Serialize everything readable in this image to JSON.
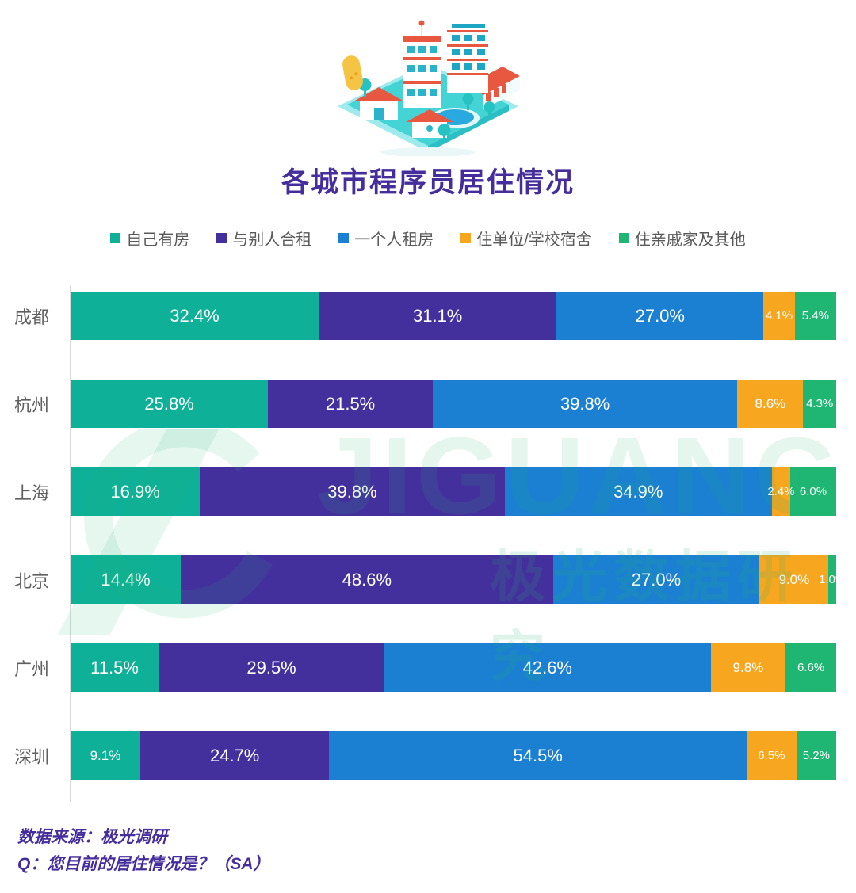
{
  "title": "各城市程序员居住情况",
  "legend": [
    {
      "label": "自己有房",
      "color": "#0FB098"
    },
    {
      "label": "与别人合租",
      "color": "#44309D"
    },
    {
      "label": "一个人租房",
      "color": "#1B80D1"
    },
    {
      "label": "住单位/学校宿舍",
      "color": "#F6A61F"
    },
    {
      "label": "住亲戚家及其他",
      "color": "#1FB573"
    }
  ],
  "chart_data": {
    "type": "bar",
    "orientation": "horizontal_stacked",
    "title": "各城市程序员居住情况",
    "categories": [
      "成都",
      "杭州",
      "上海",
      "北京",
      "广州",
      "深圳"
    ],
    "series": [
      {
        "name": "自己有房",
        "color": "#0FB098",
        "values": [
          32.4,
          25.8,
          16.9,
          14.4,
          11.5,
          9.1
        ]
      },
      {
        "name": "与别人合租",
        "color": "#44309D",
        "values": [
          31.1,
          21.5,
          39.8,
          48.6,
          29.5,
          24.7
        ]
      },
      {
        "name": "一个人租房",
        "color": "#1B80D1",
        "values": [
          27.0,
          39.8,
          34.9,
          27.0,
          42.6,
          54.5
        ]
      },
      {
        "name": "住单位/学校宿舍",
        "color": "#F6A61F",
        "values": [
          4.1,
          8.6,
          2.4,
          9.0,
          9.8,
          6.5
        ]
      },
      {
        "name": "住亲戚家及其他",
        "color": "#1FB573",
        "values": [
          5.4,
          4.3,
          6.0,
          1.0,
          6.6,
          5.2
        ]
      }
    ],
    "value_suffix": "%",
    "xlim": [
      0,
      100
    ],
    "legend_position": "top",
    "grid": false,
    "bar_label_color": "#FFFFFF"
  },
  "watermark": {
    "latin": "JIGUANG",
    "chinese": "极光数据研究",
    "color": "#1FB573"
  },
  "source": {
    "line1": "数据来源：极光调研",
    "line2": "Q：您目前的居住情况是？（SA）"
  },
  "colors": {
    "title_text": "#452D9B",
    "category_text": "#5F5F5F",
    "legend_text": "#595959",
    "axis_line": "#D9D9D9",
    "background": "#FFFFFF"
  }
}
